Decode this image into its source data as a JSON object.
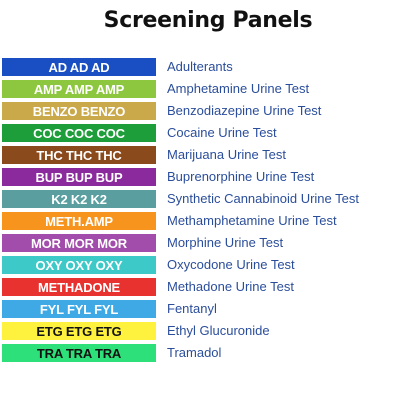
{
  "title": "Screening Panels",
  "panels": [
    {
      "code": "AD AD AD",
      "name": "Adulterants",
      "bg": "#1a4fc4",
      "fg": "#ffffff"
    },
    {
      "code": "AMP AMP AMP",
      "name": "Amphetamine Urine Test",
      "bg": "#8dc63f",
      "fg": "#ffffff"
    },
    {
      "code": "BENZO BENZO",
      "name": "Benzodiazepine Urine Test",
      "bg": "#c9a94a",
      "fg": "#ffffff"
    },
    {
      "code": "COC COC COC",
      "name": "Cocaine Urine Test",
      "bg": "#1e9e3a",
      "fg": "#ffffff"
    },
    {
      "code": "THC THC THC",
      "name": "Marijuana  Urine Test",
      "bg": "#8b4a1c",
      "fg": "#ffffff"
    },
    {
      "code": "BUP BUP BUP",
      "name": "Buprenorphine Urine Test",
      "bg": "#8b2a9c",
      "fg": "#ffffff"
    },
    {
      "code": "K2 K2 K2",
      "name": "Synthetic Cannabinoid Urine Test",
      "bg": "#5a9ea0",
      "fg": "#ffffff"
    },
    {
      "code": "METH.AMP",
      "name": "Methamphetamine Urine Test",
      "bg": "#f7941d",
      "fg": "#ffffff"
    },
    {
      "code": "MOR MOR MOR",
      "name": "Morphine Urine Test",
      "bg": "#a24cab",
      "fg": "#ffffff"
    },
    {
      "code": "OXY OXY OXY",
      "name": "Oxycodone Urine Test",
      "bg": "#3ec9c9",
      "fg": "#ffffff"
    },
    {
      "code": "METHADONE",
      "name": "Methadone Urine Test",
      "bg": "#e8322f",
      "fg": "#ffffff"
    },
    {
      "code": "FYL FYL FYL",
      "name": "Fentanyl",
      "bg": "#3fa9e6",
      "fg": "#ffffff"
    },
    {
      "code": "ETG ETG ETG",
      "name": "Ethyl Glucuronide",
      "bg": "#fff23f",
      "fg": "#111111"
    },
    {
      "code": "TRA TRA TRA",
      "name": "Tramadol",
      "bg": "#2ee07a",
      "fg": "#111111"
    }
  ]
}
